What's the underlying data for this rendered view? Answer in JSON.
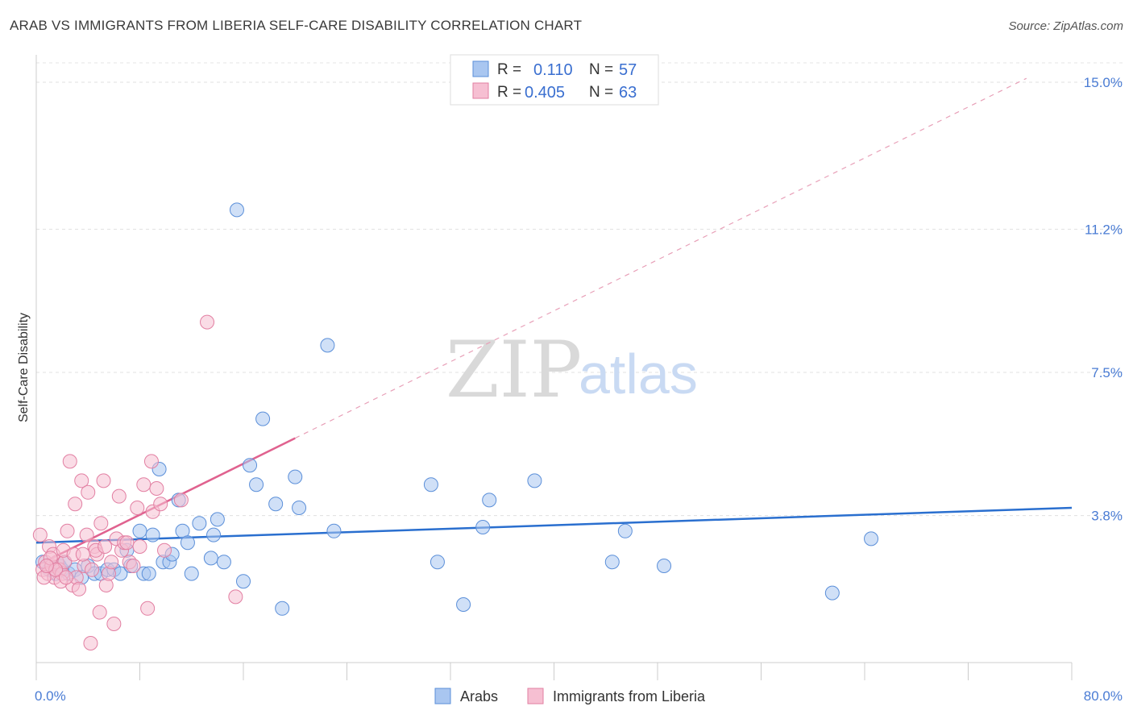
{
  "header": {
    "title": "ARAB VS IMMIGRANTS FROM LIBERIA SELF-CARE DISABILITY CORRELATION CHART",
    "source": "Source: ZipAtlas.com"
  },
  "watermark": {
    "zip": "ZIP",
    "atlas": "atlas"
  },
  "colors": {
    "blue_fill": "#a9c6f0",
    "blue_stroke": "#5b8fd9",
    "blue_line": "#2a6fcf",
    "pink_fill": "#f6bfd2",
    "pink_stroke": "#e27fa2",
    "pink_line": "#e0628f",
    "axis_label": "#4a7cd4"
  },
  "legend": {
    "series": [
      {
        "r_label": "R =",
        "r_value": "0.110",
        "n_label": "N =",
        "n_value": "57"
      },
      {
        "r_label": "R =",
        "r_value": "0.405",
        "n_label": "N =",
        "n_value": "63"
      }
    ]
  },
  "bottom_legend": {
    "arabs": "Arabs",
    "liberia": "Immigrants from Liberia"
  },
  "chart_data": {
    "type": "scatter",
    "title": "ARAB VS IMMIGRANTS FROM LIBERIA SELF-CARE DISABILITY CORRELATION CHART",
    "xlabel": "",
    "ylabel": "Self-Care Disability",
    "xlim": [
      0,
      80
    ],
    "ylim": [
      0,
      15.5
    ],
    "x_tick_labels": [
      "0.0%",
      "80.0%"
    ],
    "y_ticks": [
      3.8,
      7.5,
      11.2,
      15.0
    ],
    "y_tick_labels": [
      "3.8%",
      "7.5%",
      "11.2%",
      "15.0%"
    ],
    "grid": true,
    "legend_position": "top-center",
    "series": [
      {
        "name": "Arabs",
        "r": 0.11,
        "n": 57,
        "trend": {
          "x": [
            0,
            80
          ],
          "y": [
            3.1,
            4.0
          ],
          "style": "solid"
        },
        "points": [
          [
            0.5,
            2.6
          ],
          [
            1.0,
            2.4
          ],
          [
            1.2,
            2.5
          ],
          [
            1.5,
            2.3
          ],
          [
            1.8,
            2.5
          ],
          [
            2.0,
            2.4
          ],
          [
            2.2,
            2.6
          ],
          [
            2.5,
            2.3
          ],
          [
            3.0,
            2.4
          ],
          [
            3.5,
            2.2
          ],
          [
            4.0,
            2.5
          ],
          [
            4.5,
            2.3
          ],
          [
            5.0,
            2.3
          ],
          [
            5.5,
            2.4
          ],
          [
            6.0,
            2.4
          ],
          [
            6.5,
            2.3
          ],
          [
            7.0,
            2.9
          ],
          [
            7.3,
            2.5
          ],
          [
            8.0,
            3.4
          ],
          [
            8.3,
            2.3
          ],
          [
            8.7,
            2.3
          ],
          [
            9.0,
            3.3
          ],
          [
            9.5,
            5.0
          ],
          [
            9.8,
            2.6
          ],
          [
            10.3,
            2.6
          ],
          [
            10.5,
            2.8
          ],
          [
            11.0,
            4.2
          ],
          [
            11.3,
            3.4
          ],
          [
            11.7,
            3.1
          ],
          [
            12.0,
            2.3
          ],
          [
            12.6,
            3.6
          ],
          [
            13.5,
            2.7
          ],
          [
            13.7,
            3.3
          ],
          [
            14.0,
            3.7
          ],
          [
            14.5,
            2.6
          ],
          [
            15.5,
            11.7
          ],
          [
            16.0,
            2.1
          ],
          [
            16.5,
            5.1
          ],
          [
            17.0,
            4.6
          ],
          [
            17.5,
            6.3
          ],
          [
            18.5,
            4.1
          ],
          [
            19.0,
            1.4
          ],
          [
            20.0,
            4.8
          ],
          [
            20.3,
            4.0
          ],
          [
            22.5,
            8.2
          ],
          [
            23.0,
            3.4
          ],
          [
            30.5,
            4.6
          ],
          [
            31.0,
            2.6
          ],
          [
            33.0,
            1.5
          ],
          [
            34.5,
            3.5
          ],
          [
            35.0,
            4.2
          ],
          [
            38.5,
            4.7
          ],
          [
            44.5,
            2.6
          ],
          [
            45.5,
            3.4
          ],
          [
            48.5,
            2.5
          ],
          [
            61.5,
            1.8
          ],
          [
            64.5,
            3.2
          ]
        ]
      },
      {
        "name": "Immigrants from Liberia",
        "r": 0.405,
        "n": 63,
        "trend": {
          "x": [
            0,
            20
          ],
          "y": [
            2.5,
            5.8
          ],
          "style": "solid",
          "extension": {
            "x": [
              20,
              76.5
            ],
            "y": [
              5.8,
              15.1
            ],
            "style": "dashed"
          }
        },
        "points": [
          [
            0.3,
            3.3
          ],
          [
            0.5,
            2.4
          ],
          [
            0.7,
            2.6
          ],
          [
            0.9,
            2.3
          ],
          [
            1.0,
            3.0
          ],
          [
            1.2,
            2.5
          ],
          [
            1.4,
            2.2
          ],
          [
            1.6,
            2.6
          ],
          [
            1.8,
            2.4
          ],
          [
            2.0,
            2.3
          ],
          [
            2.2,
            2.6
          ],
          [
            2.4,
            3.4
          ],
          [
            2.6,
            5.2
          ],
          [
            2.8,
            2.0
          ],
          [
            3.0,
            4.1
          ],
          [
            3.1,
            2.2
          ],
          [
            3.3,
            1.9
          ],
          [
            3.5,
            4.7
          ],
          [
            3.7,
            2.5
          ],
          [
            3.9,
            3.3
          ],
          [
            4.0,
            4.4
          ],
          [
            4.2,
            0.5
          ],
          [
            4.3,
            2.4
          ],
          [
            4.5,
            3.0
          ],
          [
            4.7,
            2.8
          ],
          [
            4.9,
            1.3
          ],
          [
            5.0,
            3.6
          ],
          [
            5.2,
            4.7
          ],
          [
            5.4,
            2.0
          ],
          [
            5.6,
            2.3
          ],
          [
            5.8,
            2.6
          ],
          [
            6.0,
            1.0
          ],
          [
            6.2,
            3.2
          ],
          [
            6.4,
            4.3
          ],
          [
            6.6,
            2.9
          ],
          [
            6.8,
            3.1
          ],
          [
            7.0,
            3.1
          ],
          [
            7.2,
            2.6
          ],
          [
            7.5,
            2.5
          ],
          [
            7.8,
            4.0
          ],
          [
            8.0,
            3.0
          ],
          [
            8.3,
            4.6
          ],
          [
            8.6,
            1.4
          ],
          [
            8.9,
            5.2
          ],
          [
            9.0,
            3.9
          ],
          [
            9.3,
            4.5
          ],
          [
            9.6,
            4.1
          ],
          [
            9.9,
            2.9
          ],
          [
            1.3,
            2.8
          ],
          [
            2.1,
            2.9
          ],
          [
            2.9,
            2.8
          ],
          [
            1.1,
            2.7
          ],
          [
            1.9,
            2.1
          ],
          [
            3.6,
            2.8
          ],
          [
            4.6,
            2.9
          ],
          [
            5.3,
            3.0
          ],
          [
            0.6,
            2.2
          ],
          [
            1.5,
            2.4
          ],
          [
            2.3,
            2.2
          ],
          [
            11.2,
            4.2
          ],
          [
            13.2,
            8.8
          ],
          [
            15.4,
            1.7
          ],
          [
            0.8,
            2.5
          ]
        ]
      }
    ]
  }
}
